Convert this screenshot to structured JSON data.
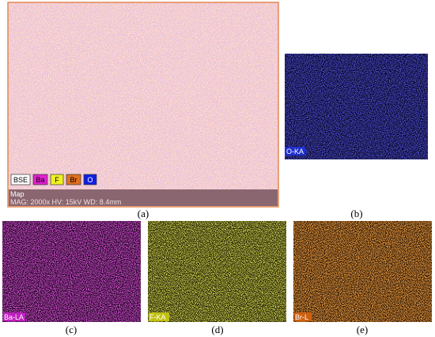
{
  "panels": [
    {
      "caption": "(a)",
      "legend": [
        "BSE",
        "Ba",
        "F",
        "Br",
        "O"
      ],
      "footer": {
        "title": "Map",
        "info": "MAG: 2000x  HV: 15kV  WD: 8.4mm"
      }
    },
    {
      "caption": "(b)",
      "label": "O-KA"
    },
    {
      "caption": "(c)",
      "label": "Ba-LA"
    },
    {
      "caption": "(d)",
      "label": "F-KA"
    },
    {
      "caption": "(e)",
      "label": "Br-L"
    }
  ]
}
